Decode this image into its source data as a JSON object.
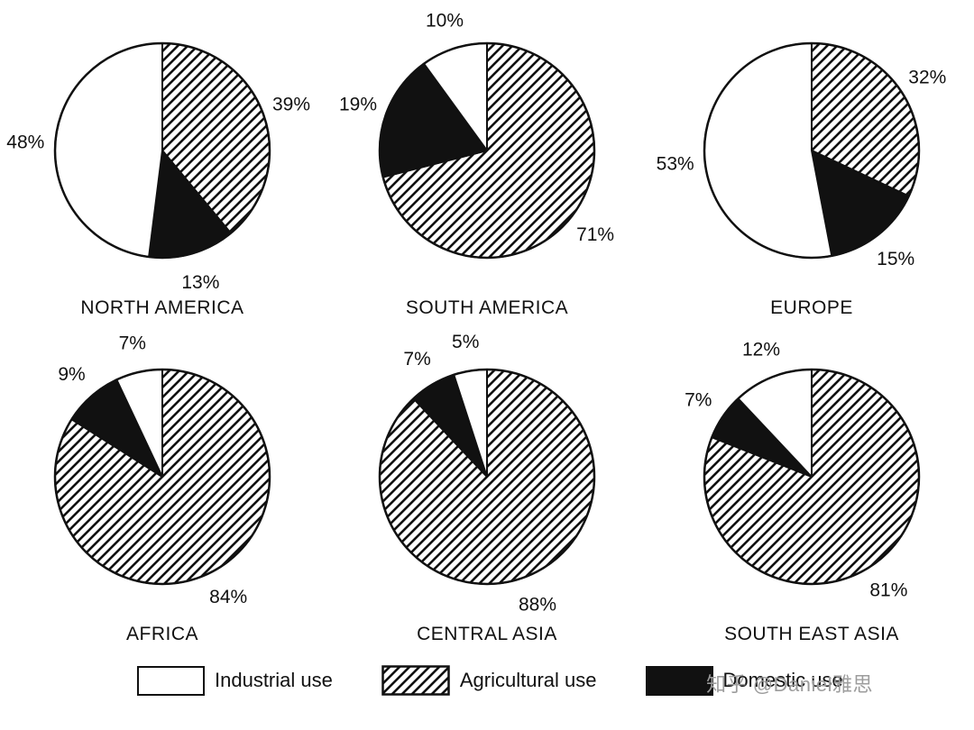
{
  "chart_data": {
    "type": "pie",
    "unit": "%",
    "start_angle": "12 o'clock",
    "direction": "clockwise",
    "slice_order": [
      "Agricultural use",
      "Domestic use",
      "Industrial use"
    ],
    "charts": [
      {
        "region": "NORTH AMERICA",
        "values": {
          "Industrial use": 48,
          "Agricultural use": 39,
          "Domestic use": 13
        }
      },
      {
        "region": "SOUTH AMERICA",
        "values": {
          "Industrial use": 10,
          "Agricultural use": 71,
          "Domestic use": 19
        }
      },
      {
        "region": "EUROPE",
        "values": {
          "Industrial use": 53,
          "Agricultural use": 32,
          "Domestic use": 15
        }
      },
      {
        "region": "AFRICA",
        "values": {
          "Industrial use": 7,
          "Agricultural use": 84,
          "Domestic use": 9
        }
      },
      {
        "region": "CENTRAL ASIA",
        "values": {
          "Industrial use": 5,
          "Agricultural use": 88,
          "Domestic use": 7
        }
      },
      {
        "region": "SOUTH EAST ASIA",
        "values": {
          "Industrial use": 12,
          "Agricultural use": 81,
          "Domestic use": 7
        }
      }
    ],
    "legend": [
      {
        "label": "Industrial use",
        "fill": "white"
      },
      {
        "label": "Agricultural use",
        "fill": "diagonal-hatch"
      },
      {
        "label": "Domestic use",
        "fill": "black"
      }
    ],
    "colors": {
      "ink": "#111111",
      "background": "#ffffff"
    }
  },
  "watermark": {
    "text": "知乎 @Daniel雅思",
    "color": "#9c9c9c"
  }
}
